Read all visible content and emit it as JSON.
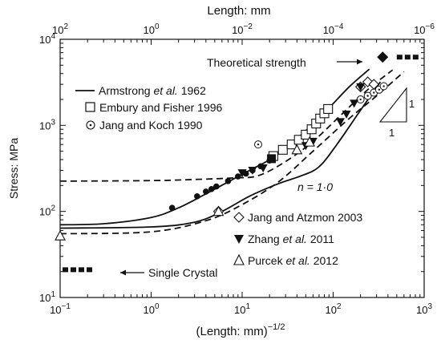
{
  "chart_data": {
    "type": "scatter",
    "top_axis": {
      "label": "Length: mm",
      "ticks": [
        {
          "value": 0.1,
          "base": "10",
          "exp": "2"
        },
        {
          "value": 1,
          "base": "10",
          "exp": "0"
        },
        {
          "value": 10,
          "base": "10",
          "exp": "−2"
        },
        {
          "value": 100,
          "base": "10",
          "exp": "−4"
        },
        {
          "value": 1000,
          "base": "10",
          "exp": "−6"
        }
      ]
    },
    "xlabel": {
      "text": "(Length: mm)",
      "exp": "−1/2"
    },
    "xscale": "log",
    "xlim": [
      0.1,
      1000
    ],
    "x_ticks": [
      {
        "value": 0.1,
        "base": "10",
        "exp": "−1"
      },
      {
        "value": 1,
        "base": "10",
        "exp": "0"
      },
      {
        "value": 10,
        "base": "10",
        "exp": "1"
      },
      {
        "value": 100,
        "base": "10",
        "exp": "2"
      },
      {
        "value": 1000,
        "base": "10",
        "exp": "3"
      }
    ],
    "ylabel": "Stress: MPa",
    "yscale": "log",
    "ylim": [
      10,
      10000
    ],
    "y_ticks": [
      {
        "value": 10,
        "base": "10",
        "exp": "1"
      },
      {
        "value": 100,
        "base": "10",
        "exp": "2"
      },
      {
        "value": 1000,
        "base": "10",
        "exp": "3"
      },
      {
        "value": 10000,
        "base": "10",
        "exp": "4"
      }
    ],
    "legend_top": [
      {
        "marker": "line",
        "pre": "Armstrong ",
        "em": "et al.",
        "post": " 1962"
      },
      {
        "marker": "open-square",
        "pre": "Embury and Fisher 1996",
        "em": "",
        "post": ""
      },
      {
        "marker": "dotted-circle",
        "pre": "Jang and Koch 1990",
        "em": "",
        "post": ""
      }
    ],
    "legend_bottom": [
      {
        "marker": "open-diamond",
        "pre": "Jang and Atzmon 2003",
        "em": "",
        "post": ""
      },
      {
        "marker": "filled-down-triangle",
        "pre": "Zhang ",
        "em": "et al.",
        "post": " 2011"
      },
      {
        "marker": "open-up-triangle",
        "pre": "Purcek ",
        "em": "et al.",
        "post": " 2012"
      }
    ],
    "annotations": {
      "theoretical_strength": "Theoretical strength",
      "single_crystal": "Single Crystal",
      "n_label": "n = 1·0",
      "slope_vertical": "1",
      "slope_horizontal": "1"
    },
    "reference_lines": {
      "theoretical_strength_stress": 6200,
      "single_crystal_stress": 21,
      "single_crystal_x": [
        0.1,
        0.2
      ],
      "theoretical_x": [
        500,
        1000
      ]
    },
    "curves": [
      {
        "style": "solid",
        "points": [
          [
            0.1,
            70
          ],
          [
            0.3,
            72
          ],
          [
            1,
            85
          ],
          [
            2,
            110
          ],
          [
            4,
            160
          ],
          [
            7,
            220
          ],
          [
            12,
            300
          ],
          [
            20,
            400
          ],
          [
            40,
            700
          ],
          [
            80,
            1400
          ],
          [
            150,
            2800
          ],
          [
            250,
            4500
          ]
        ]
      },
      {
        "style": "solid",
        "points": [
          [
            0.1,
            64
          ],
          [
            1,
            66
          ],
          [
            3,
            75
          ],
          [
            6,
            100
          ],
          [
            12,
            150
          ],
          [
            25,
            210
          ],
          [
            45,
            260
          ],
          [
            70,
            330
          ],
          [
            110,
            600
          ],
          [
            200,
            1500
          ],
          [
            330,
            3200
          ]
        ]
      },
      {
        "style": "dashed",
        "points": [
          [
            0.1,
            225
          ],
          [
            1,
            228
          ],
          [
            3,
            235
          ],
          [
            8,
            245
          ],
          [
            15,
            260
          ],
          [
            30,
            380
          ],
          [
            60,
            650
          ],
          [
            120,
            1300
          ],
          [
            250,
            2700
          ],
          [
            450,
            4400
          ]
        ]
      },
      {
        "style": "dashed",
        "points": [
          [
            0.1,
            55
          ],
          [
            1,
            58
          ],
          [
            4,
            78
          ],
          [
            10,
            120
          ],
          [
            25,
            220
          ],
          [
            60,
            500
          ],
          [
            150,
            1200
          ],
          [
            300,
            2200
          ],
          [
            600,
            4200
          ]
        ]
      }
    ],
    "series": [
      {
        "name": "Armstrong et al. 1962",
        "marker": "filled-circle",
        "points": [
          [
            1.7,
            110
          ],
          [
            3.2,
            150
          ],
          [
            4,
            170
          ],
          [
            4.6,
            182
          ],
          [
            5.2,
            195
          ],
          [
            7,
            225
          ],
          [
            9,
            255
          ],
          [
            11,
            275
          ],
          [
            13,
            300
          ],
          [
            16,
            335
          ],
          [
            20,
            390
          ]
        ]
      },
      {
        "name": "Embury and Fisher 1996",
        "marker": "open-square",
        "points": [
          [
            22,
            440
          ],
          [
            28,
            520
          ],
          [
            35,
            600
          ],
          [
            42,
            680
          ],
          [
            50,
            780
          ],
          [
            58,
            900
          ],
          [
            65,
            1050
          ],
          [
            72,
            1200
          ],
          [
            80,
            1380
          ],
          [
            88,
            1550
          ]
        ]
      },
      {
        "name": "Embury and Fisher 1996",
        "marker": "filled-square",
        "points": [
          [
            21,
            410
          ]
        ]
      },
      {
        "name": "Jang and Koch 1990",
        "marker": "dotted-circle",
        "points": [
          [
            15,
            600
          ],
          [
            200,
            2000
          ],
          [
            240,
            2200
          ],
          [
            280,
            2400
          ],
          [
            320,
            2600
          ],
          [
            360,
            2850
          ]
        ]
      },
      {
        "name": "Jang and Atzmon 2003",
        "marker": "open-diamond",
        "points": [
          [
            5.5,
            100
          ],
          [
            200,
            2800
          ],
          [
            240,
            3200
          ],
          [
            280,
            3000
          ]
        ]
      },
      {
        "name": "Zhang et al. 2011",
        "marker": "filled-down-triangle",
        "points": [
          [
            10,
            280
          ],
          [
            13,
            300
          ],
          [
            17,
            320
          ],
          [
            50,
            580
          ],
          [
            60,
            650
          ],
          [
            120,
            1100
          ],
          [
            140,
            1350
          ],
          [
            170,
            1800
          ],
          [
            200,
            2800
          ]
        ]
      },
      {
        "name": "Purcek et al. 2012",
        "marker": "open-up-triangle",
        "points": [
          [
            0.1,
            52
          ],
          [
            5.5,
            100
          ],
          [
            40,
            520
          ],
          [
            55,
            640
          ]
        ]
      },
      {
        "name": "Theoretical strength",
        "marker": "filled-diamond",
        "points": [
          [
            350,
            6200
          ]
        ]
      }
    ]
  }
}
